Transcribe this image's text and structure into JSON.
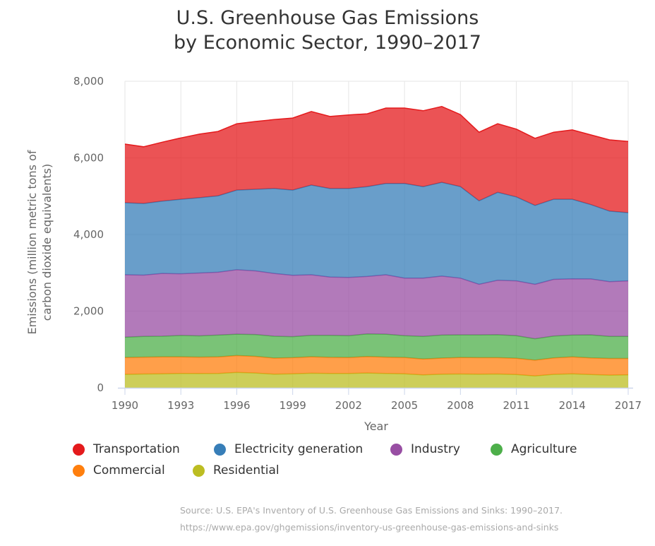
{
  "title_lines": [
    "U.S. Greenhouse Gas Emissions",
    "by Economic Sector, 1990–2017"
  ],
  "source_lines": [
    "Source: U.S. EPA's Inventory of U.S. Greenhouse Gas Emissions and Sinks: 1990–2017.",
    "https://www.epa.gov/ghgemissions/inventory-us-greenhouse-gas-emissions-and-sinks"
  ],
  "chart_data": {
    "type": "area",
    "stacked": true,
    "title": "U.S. Greenhouse Gas Emissions by Economic Sector, 1990–2017",
    "xlabel": "Year",
    "ylabel": "Emissions (million metric tons of carbon dioxide equivalents)",
    "ylabel_lines": [
      "Emissions (million metric tons of",
      "carbon dioxide equivalents)"
    ],
    "ylim": [
      0,
      8000
    ],
    "yticks": [
      0,
      2000,
      4000,
      6000,
      8000
    ],
    "ytick_labels": [
      "0",
      "2,000",
      "4,000",
      "6,000",
      "8,000"
    ],
    "xlim": [
      1990,
      2017
    ],
    "xticks": [
      1990,
      1993,
      1996,
      1999,
      2002,
      2005,
      2008,
      2011,
      2014,
      2017
    ],
    "xtick_labels": [
      "1990",
      "1993",
      "1996",
      "1999",
      "2002",
      "2005",
      "2008",
      "2011",
      "2014",
      "2017"
    ],
    "grid": true,
    "legend_position": "bottom",
    "x": [
      1990,
      1991,
      1992,
      1993,
      1994,
      1995,
      1996,
      1997,
      1998,
      1999,
      2000,
      2001,
      2002,
      2003,
      2004,
      2005,
      2006,
      2007,
      2008,
      2009,
      2010,
      2011,
      2012,
      2013,
      2014,
      2015,
      2016,
      2017
    ],
    "series": [
      {
        "name": "Residential",
        "color": "#bcbd22",
        "values": [
          350,
          360,
          365,
          375,
          370,
          375,
          400,
          385,
          355,
          365,
          380,
          375,
          375,
          385,
          375,
          365,
          335,
          355,
          360,
          355,
          360,
          345,
          310,
          350,
          365,
          345,
          330,
          340
        ]
      },
      {
        "name": "Commercial",
        "color": "#ff7f0e",
        "values": [
          440,
          440,
          440,
          430,
          430,
          430,
          440,
          435,
          420,
          420,
          430,
          420,
          415,
          430,
          425,
          425,
          415,
          420,
          430,
          430,
          425,
          425,
          410,
          430,
          440,
          435,
          435,
          425
        ]
      },
      {
        "name": "Agriculture",
        "color": "#4daf4a",
        "values": [
          530,
          540,
          540,
          560,
          555,
          570,
          560,
          570,
          570,
          550,
          560,
          575,
          570,
          590,
          600,
          570,
          590,
          600,
          590,
          595,
          600,
          590,
          560,
          570,
          570,
          600,
          575,
          575
        ]
      },
      {
        "name": "Industry",
        "color": "#984ea3",
        "values": [
          1630,
          1600,
          1640,
          1610,
          1640,
          1640,
          1680,
          1660,
          1640,
          1600,
          1580,
          1520,
          1520,
          1500,
          1550,
          1500,
          1520,
          1540,
          1480,
          1320,
          1420,
          1430,
          1420,
          1480,
          1470,
          1460,
          1430,
          1450
        ]
      },
      {
        "name": "Electricity generation",
        "color": "#377eb8",
        "values": [
          1880,
          1870,
          1885,
          1945,
          1965,
          1995,
          2080,
          2130,
          2215,
          2225,
          2340,
          2310,
          2320,
          2345,
          2380,
          2470,
          2390,
          2445,
          2390,
          2180,
          2295,
          2190,
          2060,
          2090,
          2075,
          1940,
          1840,
          1780
        ]
      },
      {
        "name": "Transportation",
        "color": "#e41a1c",
        "values": [
          1530,
          1480,
          1540,
          1600,
          1660,
          1680,
          1730,
          1770,
          1800,
          1880,
          1920,
          1880,
          1920,
          1900,
          1970,
          1970,
          1980,
          1980,
          1880,
          1790,
          1790,
          1770,
          1750,
          1750,
          1810,
          1820,
          1860,
          1860
        ]
      }
    ]
  },
  "legend": [
    {
      "label": "Transportation",
      "color": "#e41a1c"
    },
    {
      "label": "Electricity generation",
      "color": "#377eb8"
    },
    {
      "label": "Industry",
      "color": "#984ea3"
    },
    {
      "label": "Agriculture",
      "color": "#4daf4a"
    },
    {
      "label": "Commercial",
      "color": "#ff7f0e"
    },
    {
      "label": "Residential",
      "color": "#bcbd22"
    }
  ]
}
